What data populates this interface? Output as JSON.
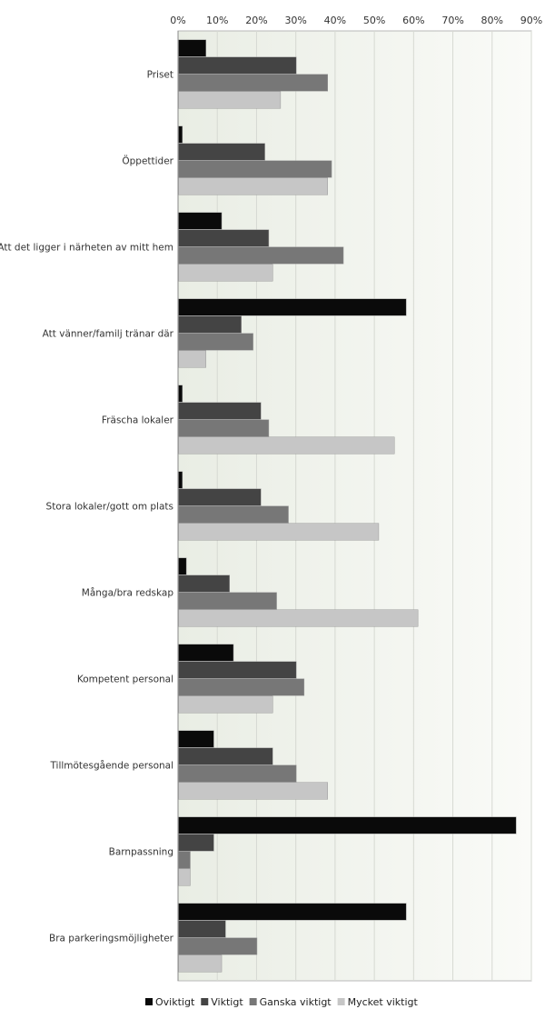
{
  "chart_data": {
    "type": "bar",
    "orientation": "horizontal",
    "categories": [
      "Priset",
      "Öppettider",
      "Att det ligger i närheten av mitt hem",
      "Att vänner/familj tränar där",
      "Fräscha lokaler",
      "Stora lokaler/gott om plats",
      "Många/bra redskap",
      "Kompetent personal",
      "Tillmötesgående personal",
      "Barnpassning",
      "Bra parkeringsmöjligheter"
    ],
    "series": [
      {
        "name": "Oviktigt",
        "color": "#0a0a0a",
        "values": [
          7,
          1,
          11,
          58,
          1,
          1,
          2,
          14,
          9,
          86,
          58
        ]
      },
      {
        "name": "Viktigt",
        "color": "#444444",
        "values": [
          30,
          22,
          23,
          16,
          21,
          21,
          13,
          30,
          24,
          9,
          12
        ]
      },
      {
        "name": "Ganska viktigt",
        "color": "#777777",
        "values": [
          38,
          39,
          42,
          19,
          23,
          28,
          25,
          32,
          30,
          3,
          20
        ]
      },
      {
        "name": "Mycket viktigt",
        "color": "#c6c6c6",
        "values": [
          26,
          38,
          24,
          7,
          55,
          51,
          61,
          24,
          38,
          3,
          11
        ]
      }
    ],
    "xlim": [
      0,
      90
    ],
    "xticks": [
      "0%",
      "10%",
      "20%",
      "30%",
      "40%",
      "50%",
      "60%",
      "70%",
      "80%",
      "90%"
    ],
    "unit": "%",
    "grid": true,
    "legend": "bottom",
    "title": "",
    "xlabel": "",
    "ylabel": ""
  }
}
